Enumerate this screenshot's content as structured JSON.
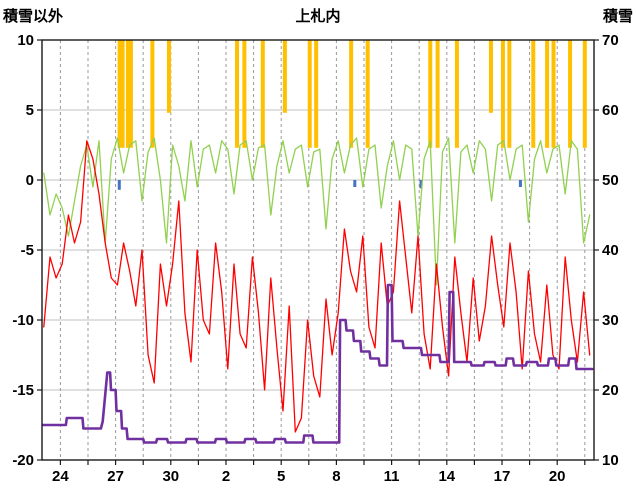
{
  "chart_data": {
    "type": "line",
    "title": "上札内",
    "left_axis": {
      "title": "積雪以外",
      "min": -20,
      "max": 10,
      "ticks": [
        10,
        5,
        0,
        -5,
        -10,
        -15,
        -20
      ]
    },
    "right_axis": {
      "title": "積雪",
      "min": 10,
      "max": 70,
      "ticks": [
        70,
        60,
        50,
        40,
        30,
        20,
        10
      ]
    },
    "x_axis": {
      "domain": [
        0,
        30
      ],
      "tick_positions": [
        1,
        4,
        7,
        10,
        13,
        16,
        19,
        22,
        25,
        28
      ],
      "tick_labels": [
        "24",
        "27",
        "30",
        "2",
        "5",
        "8",
        "11",
        "14",
        "17",
        "20"
      ],
      "gridline_start": 1,
      "gridline_step": 1.5
    },
    "series": [
      {
        "id": "red-line",
        "axis": "left",
        "color": "#FF0000",
        "width": 1.3,
        "t0": 0.1,
        "dt": 0.33333,
        "values": [
          -10.5,
          -5.5,
          -7,
          -6,
          -2.5,
          -4.5,
          -3,
          2.8,
          1.5,
          -1,
          -4.5,
          -7,
          -7.5,
          -4.5,
          -6.5,
          -9,
          -5,
          -12.5,
          -14.5,
          -6,
          -9,
          -6,
          -1.5,
          -9.5,
          -13,
          -5,
          -10,
          -11,
          -4.5,
          -8,
          -13.5,
          -6,
          -11,
          -12,
          -5.5,
          -9.5,
          -15,
          -7,
          -12,
          -16.5,
          -9,
          -18,
          -17,
          -10,
          -14,
          -15.5,
          -8.5,
          -12.5,
          -9.5,
          -3.5,
          -6.5,
          -8,
          -4,
          -10.5,
          -12,
          -4.5,
          -9,
          -8,
          -1.5,
          -5.5,
          -9.5,
          -4,
          -11,
          -13.5,
          -6,
          -10.5,
          -14,
          -5.5,
          -9.5,
          -13,
          -7,
          -11.5,
          -9,
          -4,
          -7.5,
          -10.5,
          -4.5,
          -8,
          -13.5,
          -6.5,
          -11,
          -13,
          -7.5,
          -12.5,
          -13.5,
          -5.5,
          -10,
          -13,
          -8,
          -12.5
        ]
      },
      {
        "id": "green-line",
        "axis": "left",
        "color": "#92D050",
        "width": 1.3,
        "t0": 0.1,
        "dt": 0.33333,
        "values": [
          0.5,
          -2.5,
          -1,
          -2,
          -4,
          -1.5,
          1,
          2.5,
          -0.5,
          2.8,
          -4.5,
          1.5,
          3,
          0.5,
          2.5,
          2.8,
          -1.5,
          2,
          3,
          0,
          -4.5,
          2.5,
          1,
          -1.5,
          2.8,
          -0.5,
          2.2,
          2.5,
          0.5,
          2.8,
          2.2,
          -1,
          2.5,
          2.8,
          0,
          2.3,
          2.5,
          -2.5,
          1,
          2.8,
          0.5,
          2.2,
          2.5,
          -0.5,
          2,
          2.2,
          -3.5,
          1.5,
          2.8,
          0.5,
          2.5,
          3,
          -0.5,
          2.2,
          2.5,
          -2,
          1,
          2.8,
          0,
          2.5,
          2.2,
          -4,
          1.5,
          2.8,
          -7.5,
          2,
          3,
          -4.5,
          2,
          2.5,
          0.5,
          2.8,
          2.2,
          -1.5,
          2.5,
          2.8,
          0,
          2.2,
          2.5,
          -3,
          1.5,
          2.8,
          0.5,
          2.2,
          2.5,
          -1,
          2.8,
          2.2,
          -4.5,
          -2.5
        ]
      },
      {
        "id": "purple-snow-depth",
        "axis": "right",
        "color": "#7030A0",
        "width": 2.6,
        "points": [
          [
            0.05,
            15
          ],
          [
            1.3,
            15
          ],
          [
            1.35,
            16
          ],
          [
            2.2,
            16
          ],
          [
            2.25,
            14.5
          ],
          [
            3.2,
            14.5
          ],
          [
            3.3,
            15.5
          ],
          [
            3.55,
            22.5
          ],
          [
            3.7,
            22.5
          ],
          [
            3.75,
            20
          ],
          [
            4.0,
            20
          ],
          [
            4.05,
            17
          ],
          [
            4.3,
            17
          ],
          [
            4.35,
            14.5
          ],
          [
            4.6,
            14.5
          ],
          [
            4.65,
            13
          ],
          [
            5.5,
            13
          ],
          [
            5.55,
            12.5
          ],
          [
            6.2,
            12.5
          ],
          [
            6.25,
            13
          ],
          [
            6.8,
            13
          ],
          [
            6.85,
            12.5
          ],
          [
            7.8,
            12.5
          ],
          [
            7.85,
            13
          ],
          [
            8.4,
            13
          ],
          [
            8.45,
            12.5
          ],
          [
            9.4,
            12.5
          ],
          [
            9.45,
            13
          ],
          [
            10.0,
            13
          ],
          [
            10.05,
            12.5
          ],
          [
            11.0,
            12.5
          ],
          [
            11.05,
            13
          ],
          [
            11.6,
            13
          ],
          [
            11.65,
            12.5
          ],
          [
            12.6,
            12.5
          ],
          [
            12.65,
            13
          ],
          [
            13.2,
            13
          ],
          [
            13.25,
            12.5
          ],
          [
            14.2,
            12.5
          ],
          [
            14.25,
            13.5
          ],
          [
            14.7,
            13.5
          ],
          [
            14.75,
            12.5
          ],
          [
            16.15,
            12.5
          ],
          [
            16.2,
            30
          ],
          [
            16.5,
            30
          ],
          [
            16.55,
            28.5
          ],
          [
            16.9,
            28.5
          ],
          [
            16.95,
            27
          ],
          [
            17.3,
            27
          ],
          [
            17.35,
            25.5
          ],
          [
            17.8,
            25.5
          ],
          [
            17.85,
            24.5
          ],
          [
            18.3,
            24.5
          ],
          [
            18.35,
            23.5
          ],
          [
            18.75,
            23.5
          ],
          [
            18.8,
            35
          ],
          [
            19.0,
            35
          ],
          [
            19.05,
            27
          ],
          [
            19.6,
            27
          ],
          [
            19.65,
            26
          ],
          [
            20.6,
            26
          ],
          [
            20.65,
            25
          ],
          [
            21.6,
            25
          ],
          [
            21.65,
            24
          ],
          [
            22.1,
            24
          ],
          [
            22.15,
            34
          ],
          [
            22.35,
            34
          ],
          [
            22.4,
            24
          ],
          [
            23.3,
            24
          ],
          [
            23.35,
            23.5
          ],
          [
            24.0,
            23.5
          ],
          [
            24.05,
            24
          ],
          [
            24.6,
            24
          ],
          [
            24.65,
            23.5
          ],
          [
            25.2,
            23.5
          ],
          [
            25.25,
            24.5
          ],
          [
            25.6,
            24.5
          ],
          [
            25.65,
            23.5
          ],
          [
            26.3,
            23.5
          ],
          [
            26.35,
            24
          ],
          [
            26.9,
            24
          ],
          [
            26.95,
            23.5
          ],
          [
            27.5,
            23.5
          ],
          [
            27.55,
            24.5
          ],
          [
            27.9,
            24.5
          ],
          [
            27.95,
            23.5
          ],
          [
            28.6,
            23.5
          ],
          [
            28.65,
            24.5
          ],
          [
            29.0,
            24.5
          ],
          [
            29.05,
            23
          ],
          [
            29.9,
            23
          ]
        ]
      }
    ],
    "bars": {
      "id": "orange-bars",
      "color": "#FFC000",
      "top": 10,
      "items": [
        [
          4.3,
          2.3,
          7
        ],
        [
          4.75,
          2.3,
          7
        ],
        [
          6.0,
          2.3,
          4
        ],
        [
          6.9,
          4.8,
          4
        ],
        [
          10.6,
          2.3,
          4
        ],
        [
          11.0,
          2.3,
          4
        ],
        [
          12.0,
          2.3,
          4
        ],
        [
          13.2,
          4.8,
          4
        ],
        [
          14.55,
          2.3,
          4
        ],
        [
          14.9,
          2.3,
          4
        ],
        [
          16.8,
          2.3,
          4
        ],
        [
          17.7,
          2.3,
          4
        ],
        [
          21.1,
          2.3,
          4
        ],
        [
          21.5,
          2.3,
          4
        ],
        [
          22.55,
          2.3,
          4
        ],
        [
          24.4,
          4.8,
          4
        ],
        [
          25.05,
          2.3,
          4
        ],
        [
          25.4,
          2.3,
          4
        ],
        [
          26.7,
          2.3,
          4
        ],
        [
          27.45,
          2.3,
          4
        ],
        [
          27.8,
          2.3,
          4
        ],
        [
          28.7,
          2.3,
          4
        ],
        [
          29.5,
          2.3,
          4
        ]
      ]
    },
    "blue_marks": {
      "id": "blue-marks",
      "color": "#4472C4",
      "items": [
        [
          4.2,
          -0.7
        ],
        [
          17.0,
          -0.5
        ],
        [
          20.6,
          -0.6
        ],
        [
          26.0,
          -0.5
        ]
      ]
    },
    "style": {
      "h_grid_color": "#C0C0C0",
      "v_grid_color": "#999999",
      "border_color": "#1a1a1a",
      "background": "#FFFFFF"
    }
  }
}
